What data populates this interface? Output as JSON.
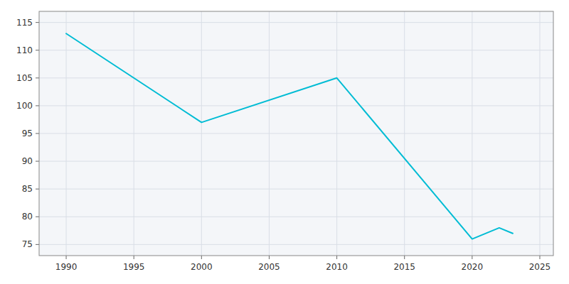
{
  "chart_data": {
    "type": "line",
    "x": [
      1990,
      2000,
      2010,
      2020,
      2022,
      2023
    ],
    "values": [
      113,
      97,
      105,
      76,
      78,
      77
    ],
    "color": "#00BCD4",
    "xlim": [
      1988,
      2026
    ],
    "ylim": [
      73,
      117
    ],
    "xticks": [
      1990,
      1995,
      2000,
      2005,
      2010,
      2015,
      2020,
      2025
    ],
    "yticks": [
      75,
      80,
      85,
      90,
      95,
      100,
      105,
      110,
      115
    ],
    "grid": true
  }
}
